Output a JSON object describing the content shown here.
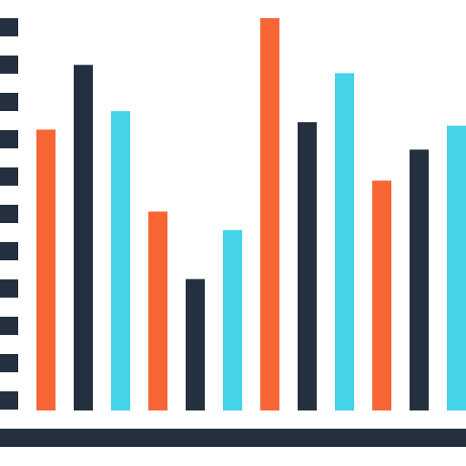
{
  "chart_data": {
    "type": "bar",
    "title": "",
    "xlabel": "",
    "ylabel": "",
    "ylim": [
      0,
      100
    ],
    "grid": false,
    "legend": "none",
    "y_tick_count": 11,
    "values": [
      71.6,
      88.1,
      76.3,
      50.7,
      33.5,
      46.0,
      100.0,
      73.5,
      86.0,
      58.6,
      66.5,
      72.6
    ],
    "bar_color_keys": [
      "orange",
      "navy",
      "cyan",
      "orange",
      "navy",
      "cyan",
      "orange",
      "navy",
      "cyan",
      "orange",
      "navy",
      "cyan"
    ]
  },
  "colors": {
    "orange": "#f86534",
    "navy": "#242f3f",
    "cyan": "#44d3e8",
    "axis": "#242f3f",
    "background": "#ffffff"
  }
}
